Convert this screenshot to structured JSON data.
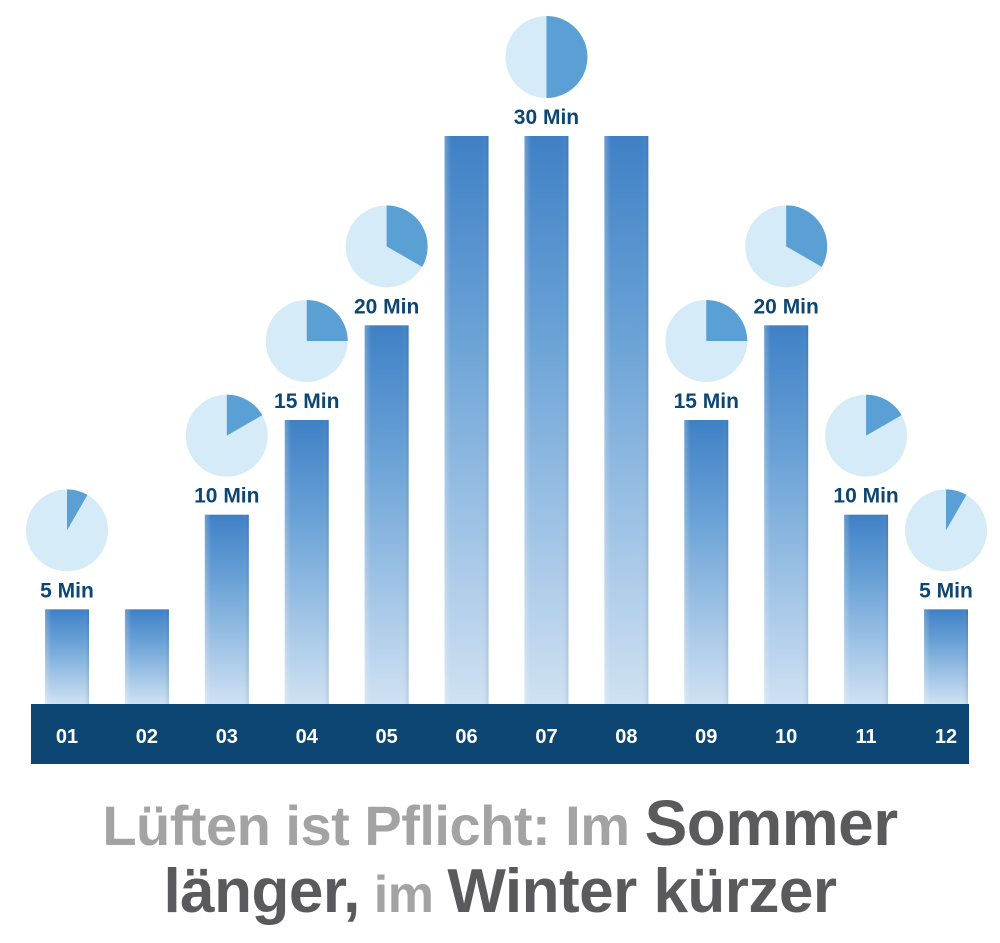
{
  "chart_data": {
    "type": "bar",
    "categories": [
      "01",
      "02",
      "03",
      "04",
      "05",
      "06",
      "07",
      "08",
      "09",
      "10",
      "11",
      "12"
    ],
    "values": [
      5,
      5,
      10,
      15,
      20,
      30,
      30,
      30,
      15,
      20,
      10,
      5
    ],
    "unit": "Min",
    "value_labels": [
      "5 Min",
      "",
      "10 Min",
      "15 Min",
      "20 Min",
      "",
      "30 Min",
      "",
      "15 Min",
      "20 Min",
      "10 Min",
      "5 Min"
    ],
    "pie_fractions": [
      0.0833,
      0,
      0.1667,
      0.25,
      0.3333,
      0,
      0.5,
      0,
      0.25,
      0.3333,
      0.1667,
      0.0833
    ],
    "ylim": [
      0,
      30
    ],
    "title": "",
    "xlabel": "",
    "ylabel": ""
  },
  "caption": {
    "line1_part1": "Lüften ist Pflicht: Im ",
    "line1_part2": "Sommer",
    "line2_part1": "länger,",
    "line2_part2": " im ",
    "line2_part3": "Winter kürzer"
  },
  "colors": {
    "axis_band": "#0d4672",
    "label_text": "#0d4672",
    "pie_light": "#d6ebf8",
    "pie_dark": "#5aa0d4",
    "caption_light": "#a3a3a3",
    "caption_dark": "#5a5a5c"
  }
}
